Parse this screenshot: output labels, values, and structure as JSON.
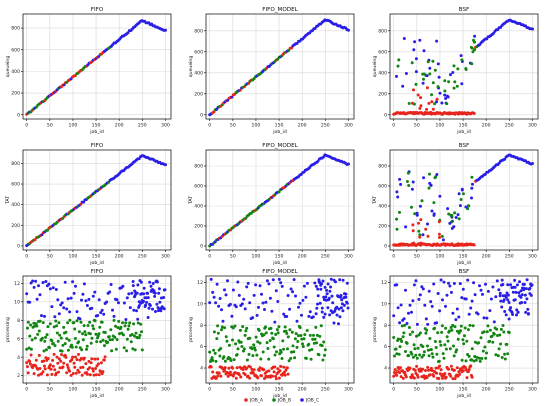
{
  "figure": {
    "legend": [
      {
        "label": "JOB_A",
        "color": "#e8241c"
      },
      {
        "label": "JOB_B",
        "color": "#128512"
      },
      {
        "label": "JOB_C",
        "color": "#2a1fe6"
      }
    ],
    "legend_placement": "bottom-center"
  },
  "chart_data": [
    {
      "type": "scatter",
      "title": "FIFO",
      "xlabel": "job_id",
      "ylabel": "queueing",
      "xlim": [
        -8,
        312
      ],
      "ylim": [
        -40,
        930
      ],
      "xticks": [
        "0",
        "50",
        "100",
        "150",
        "200",
        "250",
        "300"
      ],
      "xtick_values": [
        0,
        50,
        100,
        150,
        200,
        250,
        300
      ],
      "yticks": [
        "0",
        "200",
        "400",
        "600",
        "800"
      ],
      "ytick_values": [
        0,
        200,
        400,
        600,
        800
      ],
      "grid": true,
      "pattern": {
        "kind": "linear",
        "x_range": [
          0,
          300
        ],
        "peak_x": 250,
        "peak_y": 870,
        "end_y": 775
      },
      "series": [
        {
          "name": "JOB_A",
          "color": "#e8241c"
        },
        {
          "name": "JOB_B",
          "color": "#128512"
        },
        {
          "name": "JOB_C",
          "color": "#2a1fe6"
        }
      ]
    },
    {
      "type": "scatter",
      "title": "FIFO_MODEL",
      "xlabel": "job_id",
      "ylabel": "queueing",
      "xlim": [
        -8,
        312
      ],
      "ylim": [
        -40,
        960
      ],
      "xticks": [
        "0",
        "50",
        "100",
        "150",
        "200",
        "250",
        "300"
      ],
      "xtick_values": [
        0,
        50,
        100,
        150,
        200,
        250,
        300
      ],
      "yticks": [
        "0",
        "200",
        "400",
        "600",
        "800"
      ],
      "ytick_values": [
        0,
        200,
        400,
        600,
        800
      ],
      "grid": true,
      "pattern": {
        "kind": "linear",
        "x_range": [
          0,
          300
        ],
        "peak_x": 250,
        "peak_y": 905,
        "end_y": 810
      },
      "series": [
        {
          "name": "JOB_A",
          "color": "#e8241c"
        },
        {
          "name": "JOB_B",
          "color": "#128512"
        },
        {
          "name": "JOB_C",
          "color": "#2a1fe6"
        }
      ]
    },
    {
      "type": "scatter",
      "title": "BSF",
      "xlabel": "job_id",
      "ylabel": "queueing",
      "xlim": [
        -8,
        312
      ],
      "ylim": [
        -40,
        960
      ],
      "xticks": [
        "0",
        "50",
        "100",
        "150",
        "200",
        "250",
        "300"
      ],
      "xtick_values": [
        0,
        50,
        100,
        150,
        200,
        250,
        300
      ],
      "yticks": [
        "0",
        "200",
        "400",
        "600",
        "800"
      ],
      "ytick_values": [
        0,
        200,
        400,
        600,
        800
      ],
      "grid": true,
      "pattern": {
        "kind": "bsf",
        "x_range": [
          0,
          300
        ],
        "peak_x": 250,
        "peak_y": 905,
        "end_y": 815
      },
      "series": [
        {
          "name": "JOB_A",
          "color": "#e8241c"
        },
        {
          "name": "JOB_B",
          "color": "#128512"
        },
        {
          "name": "JOB_C",
          "color": "#2a1fe6"
        }
      ]
    },
    {
      "type": "scatter",
      "title": "FIFO",
      "xlabel": "job_id",
      "ylabel": "TAT",
      "xlim": [
        -8,
        312
      ],
      "ylim": [
        -40,
        930
      ],
      "xticks": [
        "0",
        "50",
        "100",
        "150",
        "200",
        "250",
        "300"
      ],
      "xtick_values": [
        0,
        50,
        100,
        150,
        200,
        250,
        300
      ],
      "yticks": [
        "0",
        "200",
        "400",
        "600",
        "800"
      ],
      "ytick_values": [
        0,
        200,
        400,
        600,
        800
      ],
      "grid": true,
      "pattern": {
        "kind": "linear",
        "x_range": [
          0,
          300
        ],
        "peak_x": 250,
        "peak_y": 875,
        "end_y": 785
      },
      "series": [
        {
          "name": "JOB_A",
          "color": "#e8241c"
        },
        {
          "name": "JOB_B",
          "color": "#128512"
        },
        {
          "name": "JOB_C",
          "color": "#2a1fe6"
        }
      ]
    },
    {
      "type": "scatter",
      "title": "FIFO_MODEL",
      "xlabel": "job_id",
      "ylabel": "TAT",
      "xlim": [
        -8,
        312
      ],
      "ylim": [
        -40,
        960
      ],
      "xticks": [
        "0",
        "50",
        "100",
        "150",
        "200",
        "250",
        "300"
      ],
      "xtick_values": [
        0,
        50,
        100,
        150,
        200,
        250,
        300
      ],
      "yticks": [
        "0",
        "200",
        "400",
        "600",
        "800"
      ],
      "ytick_values": [
        0,
        200,
        400,
        600,
        800
      ],
      "grid": true,
      "pattern": {
        "kind": "linear",
        "x_range": [
          0,
          300
        ],
        "peak_x": 250,
        "peak_y": 910,
        "end_y": 815
      },
      "series": [
        {
          "name": "JOB_A",
          "color": "#e8241c"
        },
        {
          "name": "JOB_B",
          "color": "#128512"
        },
        {
          "name": "JOB_C",
          "color": "#2a1fe6"
        }
      ]
    },
    {
      "type": "scatter",
      "title": "BSF",
      "xlabel": "job_id",
      "ylabel": "TAT",
      "xlim": [
        -8,
        312
      ],
      "ylim": [
        -40,
        960
      ],
      "xticks": [
        "0",
        "50",
        "100",
        "150",
        "200",
        "250",
        "300"
      ],
      "xtick_values": [
        0,
        50,
        100,
        150,
        200,
        250,
        300
      ],
      "yticks": [
        "0",
        "200",
        "400",
        "600",
        "800"
      ],
      "ytick_values": [
        0,
        200,
        400,
        600,
        800
      ],
      "grid": true,
      "pattern": {
        "kind": "bsf",
        "x_range": [
          0,
          300
        ],
        "peak_x": 250,
        "peak_y": 910,
        "end_y": 820
      },
      "series": [
        {
          "name": "JOB_A",
          "color": "#e8241c"
        },
        {
          "name": "JOB_B",
          "color": "#128512"
        },
        {
          "name": "JOB_C",
          "color": "#2a1fe6"
        }
      ]
    },
    {
      "type": "scatter",
      "title": "FIFO",
      "xlabel": "job_id",
      "ylabel": "processing",
      "xlim": [
        -8,
        312
      ],
      "ylim": [
        1.2,
        12.8
      ],
      "xticks": [
        "0",
        "50",
        "100",
        "150",
        "200",
        "250",
        "300"
      ],
      "xtick_values": [
        0,
        50,
        100,
        150,
        200,
        250,
        300
      ],
      "yticks": [
        "2",
        "4",
        "6",
        "8",
        "10",
        "12"
      ],
      "ytick_values": [
        2,
        4,
        6,
        8,
        10,
        12
      ],
      "grid": true,
      "pattern": {
        "kind": "processing",
        "a_range": [
          2,
          4.3
        ],
        "b_range": [
          4.6,
          8
        ],
        "c_range": [
          8,
          12.3
        ]
      },
      "series": [
        {
          "name": "JOB_A",
          "color": "#e8241c"
        },
        {
          "name": "JOB_B",
          "color": "#128512"
        },
        {
          "name": "JOB_C",
          "color": "#2a1fe6"
        }
      ]
    },
    {
      "type": "scatter",
      "title": "FIFO_MODEL",
      "xlabel": "job_id",
      "ylabel": "processing",
      "xlim": [
        -8,
        312
      ],
      "ylim": [
        2.6,
        12.6
      ],
      "xticks": [
        "0",
        "50",
        "100",
        "150",
        "200",
        "250",
        "300"
      ],
      "xtick_values": [
        0,
        50,
        100,
        150,
        200,
        250,
        300
      ],
      "yticks": [
        "4",
        "6",
        "8",
        "10",
        "12"
      ],
      "ytick_values": [
        4,
        6,
        8,
        10,
        12
      ],
      "grid": true,
      "pattern": {
        "kind": "processing",
        "a_range": [
          3,
          4.2
        ],
        "b_range": [
          4.6,
          8
        ],
        "c_range": [
          8,
          12.3
        ]
      },
      "series": [
        {
          "name": "JOB_A",
          "color": "#e8241c"
        },
        {
          "name": "JOB_B",
          "color": "#128512"
        },
        {
          "name": "JOB_C",
          "color": "#2a1fe6"
        }
      ]
    },
    {
      "type": "scatter",
      "title": "BSF",
      "xlabel": "job_id",
      "ylabel": "processing",
      "xlim": [
        -8,
        312
      ],
      "ylim": [
        2.6,
        12.6
      ],
      "xticks": [
        "0",
        "50",
        "100",
        "150",
        "200",
        "250",
        "300"
      ],
      "xtick_values": [
        0,
        50,
        100,
        150,
        200,
        250,
        300
      ],
      "yticks": [
        "4",
        "6",
        "8",
        "10",
        "12"
      ],
      "ytick_values": [
        4,
        6,
        8,
        10,
        12
      ],
      "grid": true,
      "pattern": {
        "kind": "processing",
        "a_range": [
          3,
          4.2
        ],
        "b_range": [
          4.6,
          8
        ],
        "c_range": [
          8,
          12.3
        ]
      },
      "series": [
        {
          "name": "JOB_A",
          "color": "#e8241c"
        },
        {
          "name": "JOB_B",
          "color": "#128512"
        },
        {
          "name": "JOB_C",
          "color": "#2a1fe6"
        }
      ]
    }
  ]
}
